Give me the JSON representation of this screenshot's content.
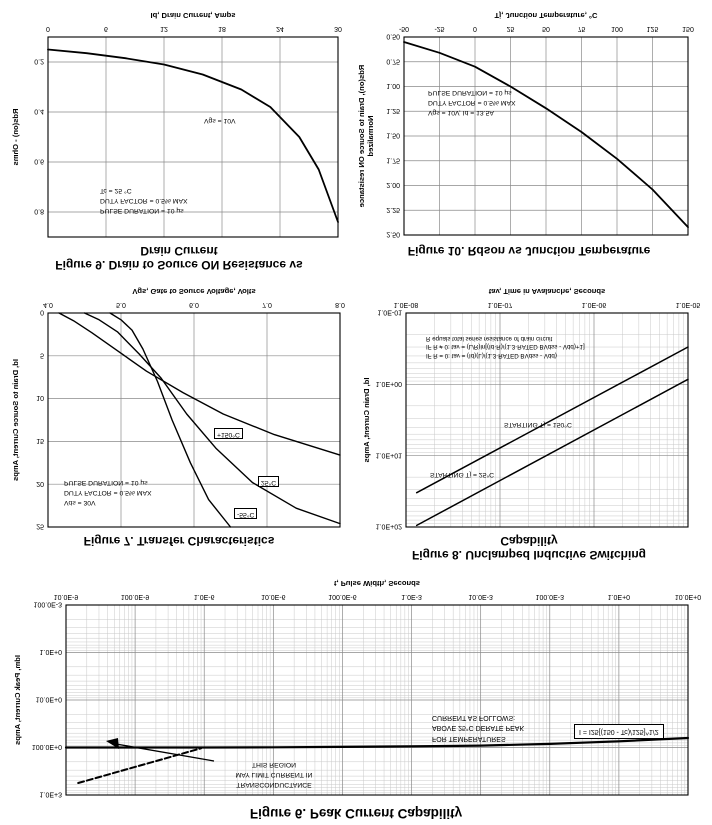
{
  "colors": {
    "background": "#ffffff",
    "ink": "#000000",
    "grid_major": "#8a8a8a",
    "grid_minor": "#c9c9c9"
  },
  "chart_data": [
    {
      "id": "fig6",
      "type": "line",
      "title": "Figure 6. Peak Current Capability",
      "x": {
        "label": "t, Pulse Width, Seconds",
        "scale": "log",
        "min": 1e-08,
        "max": 10,
        "ticks": [
          1e-08,
          1e-07,
          1e-06,
          1e-05,
          0.0001,
          0.001,
          0.01,
          0.1,
          1,
          10
        ],
        "tick_labels": [
          "10.0E-9",
          "100.0E-9",
          "1.0E-6",
          "10.0E-6",
          "100.0E-6",
          "1.0E-3",
          "10.0E-3",
          "100.0E-3",
          "1.0E+0",
          "10.0E+0"
        ]
      },
      "y": {
        "label": "Idm, Peak Current, Amps",
        "scale": "log",
        "min": 0.1,
        "max": 1000,
        "ticks": [
          0.1,
          1,
          10,
          100,
          1000
        ],
        "tick_labels": [
          "100.0E-3",
          "1.0E+0",
          "10.0E+0",
          "100.0E+0",
          "1.0E+3"
        ]
      },
      "grid": true,
      "series": [
        {
          "name": "peak-current-capability",
          "style": "solid",
          "width": 2.2,
          "points": [
            [
              1e-08,
              100
            ],
            [
              1e-07,
              100
            ],
            [
              1e-06,
              100
            ],
            [
              1e-05,
              99
            ],
            [
              0.0001,
              97
            ],
            [
              0.001,
              95
            ],
            [
              0.01,
              91
            ],
            [
              0.1,
              84
            ],
            [
              1,
              74
            ],
            [
              10,
              63
            ]
          ]
        },
        {
          "name": "transconductance-limit",
          "style": "dashed",
          "width": 2,
          "points": [
            [
              1.5e-08,
              560
            ],
            [
              9e-07,
              104
            ]
          ]
        }
      ],
      "annotations": {
        "transcond_l1": "TRANSCONDUCTANCE",
        "transcond_l2": "MAY LIMIT CURRENT IN",
        "transcond_l3": "THIS REGION",
        "derate_l1": "FOR TEMPERATURES",
        "derate_l2": "ABOVE 25°C DERATE PEAK",
        "derate_l3": "CURRENT AS FOLLOWS:",
        "derate_formula": "I = I25[(150 - Tc)/125]^1/2"
      }
    },
    {
      "id": "fig7",
      "type": "line",
      "title": "Figure 7. Transfer Characteristics",
      "x": {
        "label": "Vgs, Gate to Source Voltage, Volts",
        "scale": "linear",
        "min": 4,
        "max": 8,
        "ticks": [
          4,
          5,
          6,
          7,
          8
        ],
        "tick_labels": [
          "4.0",
          "5.0",
          "6.0",
          "7.0",
          "8.0"
        ]
      },
      "y": {
        "label": "Id, Drain to Source Current, Amps",
        "scale": "linear",
        "min": 0,
        "max": 25,
        "ticks": [
          0,
          5,
          10,
          15,
          20,
          25
        ],
        "tick_labels": [
          "0",
          "5",
          "10",
          "15",
          "20",
          "25"
        ]
      },
      "grid": true,
      "series": [
        {
          "name": "tj-minus-55C",
          "width": 1.4,
          "points": [
            [
              4.85,
              0
            ],
            [
              5.0,
              0.8
            ],
            [
              5.15,
              2
            ],
            [
              5.3,
              4.2
            ],
            [
              5.5,
              8
            ],
            [
              5.7,
              12.5
            ],
            [
              5.95,
              17.5
            ],
            [
              6.2,
              21.8
            ],
            [
              6.5,
              25
            ]
          ]
        },
        {
          "name": "tj-25C",
          "width": 1.4,
          "points": [
            [
              4.5,
              0
            ],
            [
              4.7,
              0.8
            ],
            [
              4.95,
              2.2
            ],
            [
              5.25,
              4.8
            ],
            [
              5.55,
              7.6
            ],
            [
              5.9,
              11.8
            ],
            [
              6.3,
              15.8
            ],
            [
              6.8,
              19.8
            ],
            [
              7.4,
              22.8
            ],
            [
              8,
              24.6
            ]
          ]
        },
        {
          "name": "tj-plus-150C",
          "width": 1.4,
          "points": [
            [
              4.15,
              0
            ],
            [
              4.35,
              0.9
            ],
            [
              4.6,
              2.3
            ],
            [
              4.95,
              4.4
            ],
            [
              5.35,
              6.8
            ],
            [
              5.85,
              9.3
            ],
            [
              6.4,
              11.8
            ],
            [
              7.1,
              14.2
            ],
            [
              8,
              16.6
            ]
          ]
        }
      ],
      "annotations": {
        "cond_l1": "Vds = 30V",
        "cond_l2": "DUTY FACTOR = 0.5% MAX",
        "cond_l3": "PULSE DURATION = 10 μs",
        "label_m55": "-55°C",
        "label_25": "25°C",
        "label_p150": "+150°C"
      }
    },
    {
      "id": "fig8",
      "type": "line",
      "title": "Figure 8. Unclamped Inductive Switching Capability",
      "x": {
        "label": "tav, Time in Avalanche, Seconds",
        "scale": "log",
        "min": 1e-08,
        "max": 1e-05,
        "ticks": [
          1e-08,
          1e-07,
          1e-06,
          1e-05
        ],
        "tick_labels": [
          "1.0E-08",
          "1.0E-07",
          "1.0E-06",
          "1.0E-05"
        ]
      },
      "y": {
        "label": "Id, Drain Current, Amps",
        "scale": "log",
        "min": 0.1,
        "max": 100,
        "ticks": [
          0.1,
          1,
          10,
          100
        ],
        "tick_labels": [
          "1.0E-01",
          "1.0E+00",
          "1.0E+01",
          "1.0E+02"
        ]
      },
      "grid": true,
      "series": [
        {
          "name": "starting-tj-25C",
          "width": 1.5,
          "points": [
            [
              1.3e-08,
              95
            ],
            [
              1e-05,
              0.85
            ]
          ]
        },
        {
          "name": "starting-tj-150C",
          "width": 1.5,
          "points": [
            [
              1.3e-08,
              33
            ],
            [
              1e-05,
              0.3
            ]
          ]
        }
      ],
      "annotations": {
        "label_25": "STARTING Tj = 25°C",
        "label_150": "STARTING Tj = 150°C",
        "eq_l1": "IF R = 0: tav = (Id)(L)/(1.3·RATED BVdss - Vdd)",
        "eq_l2": "IF R ≠ 0: tav = (L/R)ln[(Id·R)/(1.3·RATED BVdss - Vdd)+1]",
        "eq_l3": "R equals total series resistance of drain circuit"
      }
    },
    {
      "id": "fig9",
      "type": "line",
      "title": "Figure 9. Drain to Source ON Resistance vs Drain Current",
      "x": {
        "label": "Id, Drain Current, Amps",
        "scale": "linear",
        "min": 0,
        "max": 30,
        "ticks": [
          0,
          6,
          12,
          18,
          24,
          30
        ],
        "tick_labels": [
          "0",
          "6",
          "12",
          "18",
          "24",
          "30"
        ]
      },
      "y": {
        "label": "Rds(on) - Ohms",
        "scale": "linear",
        "min": 0.1,
        "max": 0.9,
        "ticks": [
          0.2,
          0.4,
          0.6,
          0.8
        ],
        "tick_labels": [
          "0.2",
          "0.4",
          "0.6",
          "0.8"
        ]
      },
      "grid": true,
      "series": [
        {
          "name": "rdson-vs-drain-current",
          "width": 1.8,
          "points": [
            [
              0,
              0.15
            ],
            [
              4,
              0.165
            ],
            [
              8,
              0.185
            ],
            [
              12,
              0.21
            ],
            [
              16,
              0.25
            ],
            [
              20,
              0.31
            ],
            [
              23,
              0.38
            ],
            [
              26,
              0.5
            ],
            [
              28,
              0.63
            ],
            [
              30,
              0.84
            ]
          ]
        }
      ],
      "annotations": {
        "vgs": "Vgs = 10V",
        "cond_l1": "PULSE DURATION = 10 μs",
        "cond_l2": "DUTY FACTOR = 0.5% MAX",
        "cond_l3": "Tc = 25 °C"
      }
    },
    {
      "id": "fig10",
      "type": "line",
      "title": "Figure 10. Rdson vs Junction Temperature",
      "x": {
        "label": "Tj, Junction Temperature, °C",
        "scale": "linear",
        "min": -50,
        "max": 150,
        "ticks": [
          -50,
          -25,
          0,
          25,
          50,
          75,
          100,
          125,
          150
        ],
        "tick_labels": [
          "-50",
          "-25",
          "0",
          "25",
          "50",
          "75",
          "100",
          "125",
          "150"
        ]
      },
      "y": {
        "label": "Rds(on), Drain to Source ON resistance",
        "label2": "Normalized",
        "scale": "linear",
        "min": 0.5,
        "max": 2.5,
        "ticks": [
          0.5,
          0.75,
          1,
          1.25,
          1.5,
          1.75,
          2,
          2.25,
          2.5
        ],
        "tick_labels": [
          "0.50",
          "0.75",
          "1.00",
          "1.25",
          "1.50",
          "1.75",
          "2.00",
          "2.25",
          "2.50"
        ]
      },
      "grid": true,
      "series": [
        {
          "name": "normalized-rdson",
          "width": 1.8,
          "points": [
            [
              -50,
              0.55
            ],
            [
              -25,
              0.66
            ],
            [
              0,
              0.8
            ],
            [
              25,
              1.0
            ],
            [
              50,
              1.22
            ],
            [
              75,
              1.46
            ],
            [
              100,
              1.73
            ],
            [
              125,
              2.04
            ],
            [
              150,
              2.42
            ]
          ]
        }
      ],
      "annotations": {
        "cond_l1": "Vgs = 10V, Id = 13.5A",
        "cond_l2": "DUTY FACTOR = 0.5% MAX",
        "cond_l3": "PULSE DURATION = 10 μs"
      }
    }
  ]
}
